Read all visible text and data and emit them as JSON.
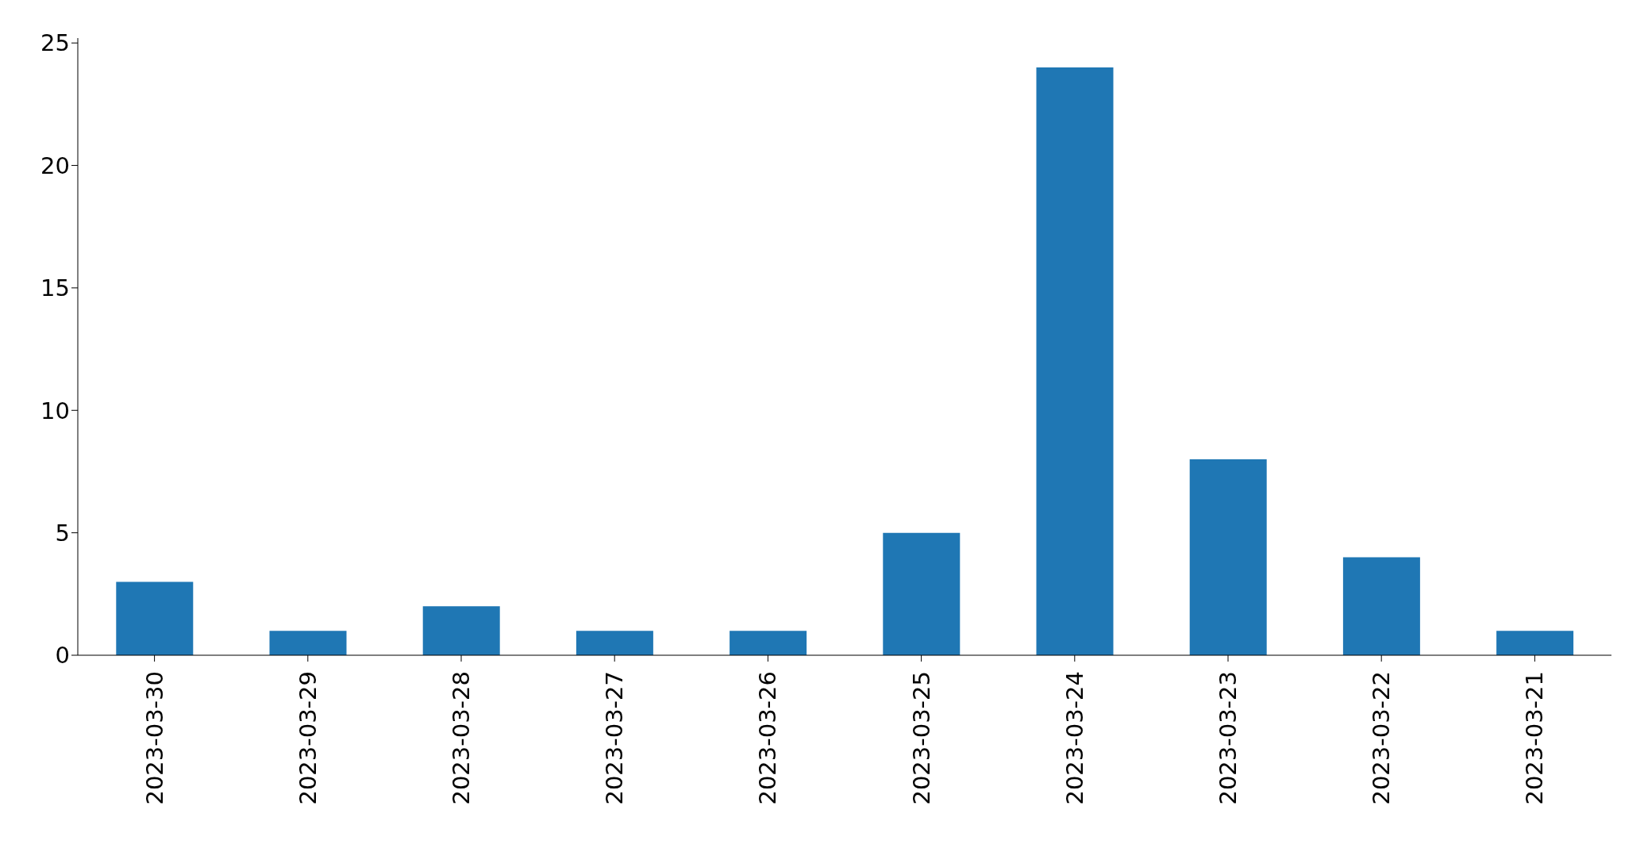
{
  "chart_data": {
    "type": "bar",
    "categories": [
      "2023-03-30",
      "2023-03-29",
      "2023-03-28",
      "2023-03-27",
      "2023-03-26",
      "2023-03-25",
      "2023-03-24",
      "2023-03-23",
      "2023-03-22",
      "2023-03-21"
    ],
    "values": [
      3,
      1,
      2,
      1,
      1,
      5,
      24,
      8,
      4,
      1
    ],
    "color": "#1f77b4",
    "ylim": [
      0,
      25.2
    ],
    "yticks": [
      0,
      5,
      10,
      15,
      20,
      25
    ],
    "grid": false
  }
}
